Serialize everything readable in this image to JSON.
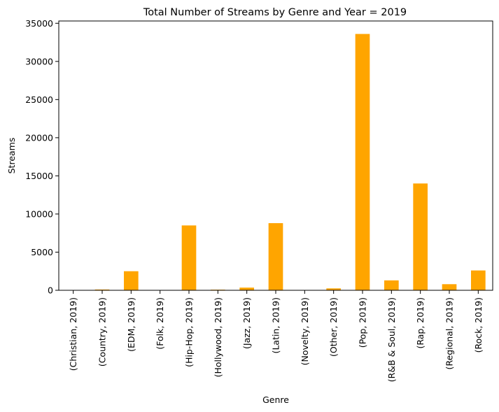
{
  "chart_data": {
    "type": "bar",
    "title": "Total Number of Streams by Genre and Year = 2019",
    "xlabel": "Genre",
    "ylabel": "Streams",
    "ylim": [
      0,
      35300
    ],
    "yticks": [
      0,
      5000,
      10000,
      15000,
      20000,
      25000,
      30000,
      35000
    ],
    "grid": false,
    "legend": "none",
    "bar_color": "#FFA500",
    "categories": [
      "(Christian, 2019)",
      "(Country, 2019)",
      "(EDM, 2019)",
      "(Folk, 2019)",
      "(Hip-Hop, 2019)",
      "(Hollywood, 2019)",
      "(Jazz, 2019)",
      "(Latin, 2019)",
      "(Novelty, 2019)",
      "(Other, 2019)",
      "(Pop, 2019)",
      "(R&B & Soul, 2019)",
      "(Rap, 2019)",
      "(Regional, 2019)",
      "(Rock, 2019)"
    ],
    "values": [
      20,
      100,
      2500,
      20,
      8500,
      80,
      350,
      8800,
      20,
      250,
      33600,
      1300,
      14000,
      800,
      2600
    ]
  }
}
